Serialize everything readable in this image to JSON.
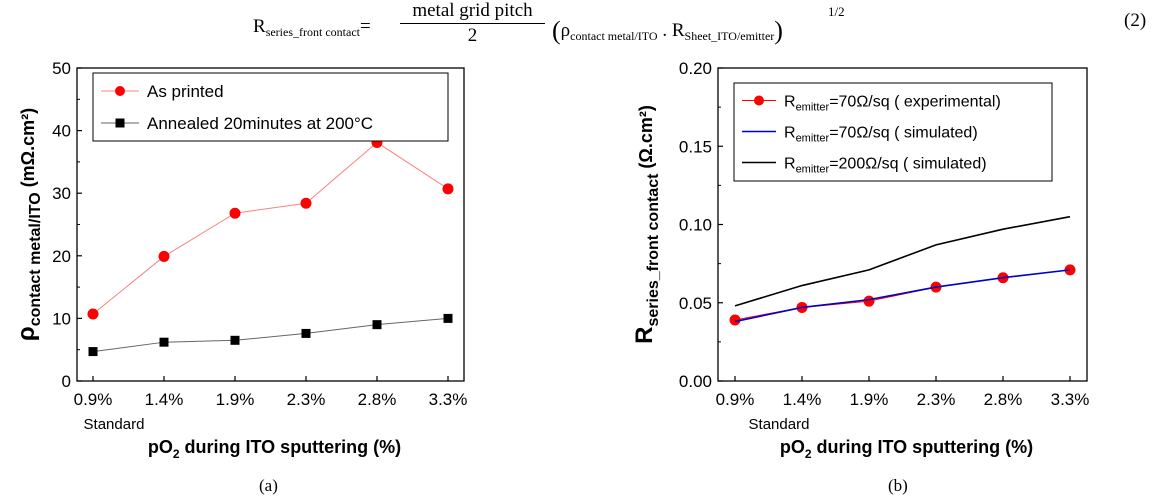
{
  "equation": {
    "lhs_main": "R",
    "lhs_sub": "series_front contact",
    "equals": "=",
    "numerator": "metal grid pitch",
    "denominator": "2",
    "rho": "ρ",
    "rho_sub": "contact metal/ITO",
    "dot": " . ",
    "r2": "R",
    "r2_sub": "Sheet_ITO/emitter",
    "exponent": "1/2",
    "number": "(2)"
  },
  "captions": {
    "a": "(a)",
    "b": "(b)"
  },
  "chart_data": [
    {
      "type": "line",
      "panel": "a",
      "categories": [
        "0.9%",
        "1.4%",
        "1.9%",
        "2.3%",
        "2.8%",
        "3.3%"
      ],
      "category_note": "Standard",
      "xlabel_main": "pO",
      "xlabel_sub": "2",
      "xlabel_rest": " during ITO sputtering (%)",
      "ylabel_main": "ρ",
      "ylabel_sub": "contact metal/ITO",
      "ylabel_rest": " (mΩ.cm²)",
      "ylim": [
        0,
        50
      ],
      "yticks": [
        0,
        10,
        20,
        30,
        40,
        50
      ],
      "legend_position": "top-left",
      "series": [
        {
          "name": "As printed",
          "color": "#ff0000",
          "line_color": "#ff8080",
          "marker": "circle",
          "values": [
            10.7,
            19.9,
            26.8,
            28.4,
            38.1,
            30.7
          ]
        },
        {
          "name": "Annealed 20minutes at 200°C",
          "color": "#000000",
          "line_color": "#666666",
          "marker": "square",
          "values": [
            4.7,
            6.2,
            6.5,
            7.6,
            9.0,
            10.0
          ]
        }
      ]
    },
    {
      "type": "line",
      "panel": "b",
      "categories": [
        "0.9%",
        "1.4%",
        "1.9%",
        "2.3%",
        "2.8%",
        "3.3%"
      ],
      "category_note": "Standard",
      "xlabel_main": "pO",
      "xlabel_sub": "2",
      "xlabel_rest": " during ITO sputtering (%)",
      "ylabel_main": "R",
      "ylabel_sub": "series_front contact",
      "ylabel_rest": " (Ω.cm²)",
      "ylim": [
        0,
        0.2
      ],
      "yticks": [
        "0.00",
        "0.05",
        "0.10",
        "0.15",
        "0.20"
      ],
      "legend_position": "top-left",
      "series": [
        {
          "name_main": "R",
          "name_sub": "emitter",
          "name_rest": "=70Ω/sq  ( experimental)",
          "color": "#ff0000",
          "line_color": "#ff0000",
          "marker": "circle",
          "values": [
            0.039,
            0.047,
            0.051,
            0.06,
            0.066,
            0.071
          ]
        },
        {
          "name_main": "R",
          "name_sub": "emitter",
          "name_rest": "=70Ω/sq  ( simulated)",
          "color": "#0000cc",
          "line_color": "#0000cc",
          "marker": "none",
          "values": [
            0.038,
            0.047,
            0.052,
            0.06,
            0.066,
            0.071
          ]
        },
        {
          "name_main": "R",
          "name_sub": "emitter",
          "name_rest": "=200Ω/sq  ( simulated)",
          "color": "#000000",
          "line_color": "#000000",
          "marker": "none",
          "values": [
            0.048,
            0.061,
            0.071,
            0.087,
            0.097,
            0.105
          ]
        }
      ]
    }
  ]
}
